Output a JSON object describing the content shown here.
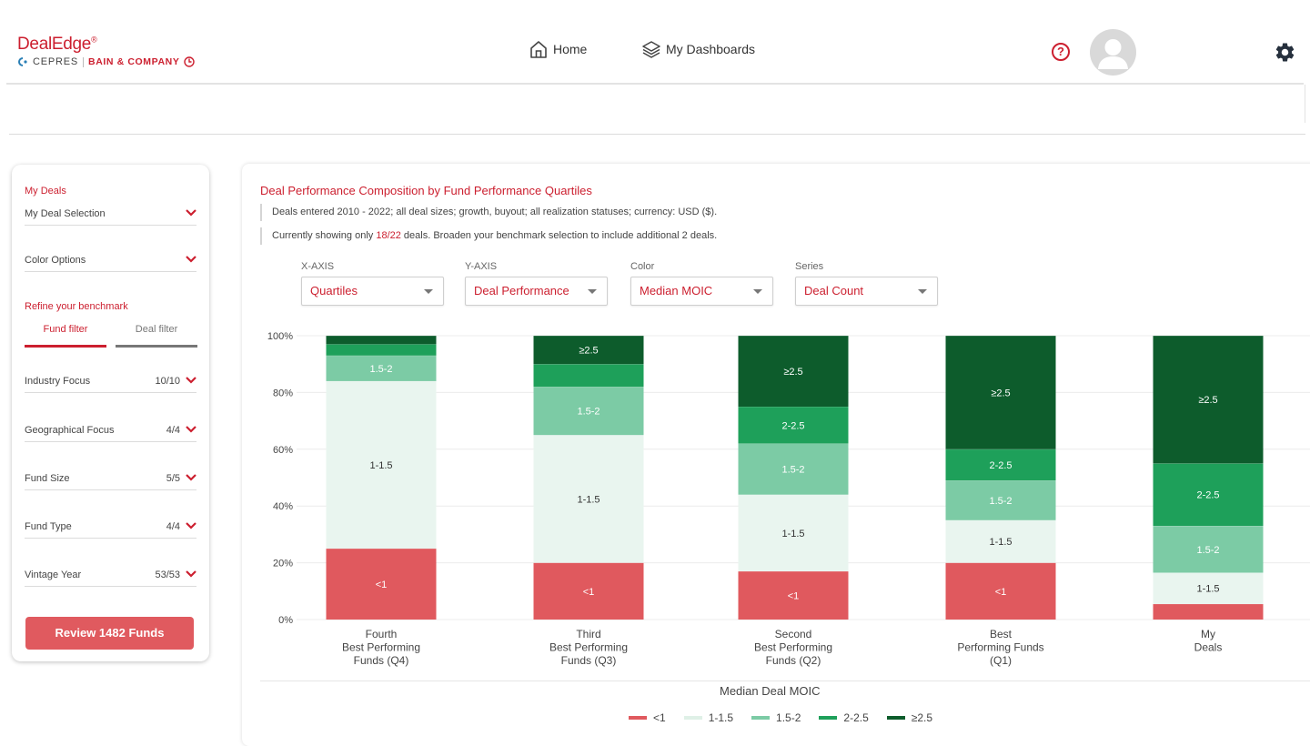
{
  "header": {
    "logo": {
      "brand": "DealEdge",
      "mark": "®",
      "partner1": "CEPRES",
      "partner2": "BAIN & COMPANY"
    },
    "nav": [
      {
        "label": "Home",
        "icon": "home-icon"
      },
      {
        "label": "My Dashboards",
        "icon": "layers-icon"
      }
    ],
    "help_glyph": "?",
    "icons": {
      "help": "help-icon",
      "avatar": "user-avatar-icon",
      "settings": "gear-icon"
    }
  },
  "sidebar": {
    "my_deals_title": "My Deals",
    "deal_selection": "My Deal Selection",
    "color_options": "Color Options",
    "refine_title": "Refine your benchmark",
    "tabs": [
      "Fund filter",
      "Deal filter"
    ],
    "filters": [
      {
        "label": "Industry Focus",
        "value": "10/10"
      },
      {
        "label": "Geographical Focus",
        "value": "4/4"
      },
      {
        "label": "Fund Size",
        "value": "5/5"
      },
      {
        "label": "Fund Type",
        "value": "4/4"
      },
      {
        "label": "Vintage Year",
        "value": "53/53"
      }
    ],
    "review_button": "Review 1482 Funds"
  },
  "panel": {
    "title": "Deal Performance Composition by Fund Performance Quartiles",
    "note1": "Deals entered 2010 - 2022; all deal sizes; growth, buyout; all realization statuses; currency: USD ($).",
    "note2_prefix": "Currently showing only ",
    "note2_count": "18/22",
    "note2_suffix": " deals. Broaden your benchmark selection to include additional 2 deals.",
    "dropdowns": [
      {
        "label": "X-AXIS",
        "value": "Quartiles"
      },
      {
        "label": "Y-AXIS",
        "value": "Deal Performance"
      },
      {
        "label": "Color",
        "value": "Median MOIC"
      },
      {
        "label": "Series",
        "value": "Deal Count"
      }
    ]
  },
  "chart_data": {
    "type": "bar",
    "stacked": true,
    "title": "",
    "xlabel": "",
    "ylabel": "",
    "ylim": [
      0,
      100
    ],
    "yticks": [
      "0%",
      "20%",
      "40%",
      "60%",
      "80%",
      "100%"
    ],
    "categories": [
      [
        "Fourth",
        "Best Performing",
        "Funds (Q4)"
      ],
      [
        "Third",
        "Best Performing",
        "Funds (Q3)"
      ],
      [
        "Second",
        "Best Performing",
        "Funds (Q2)"
      ],
      [
        "Best",
        "Performing Funds",
        "(Q1)"
      ],
      [
        "My",
        "Deals"
      ]
    ],
    "legend_title": "Median Deal MOIC",
    "legend_position": "bottom",
    "series": [
      {
        "name": "<1",
        "color": "#e0595e",
        "label_color": "#ffffff",
        "values": [
          25,
          20,
          17,
          20,
          5.5
        ]
      },
      {
        "name": "1-1.5",
        "color": "#e9f5ef",
        "label_color": "#333333",
        "values": [
          59,
          45,
          27,
          15,
          11
        ]
      },
      {
        "name": "1.5-2",
        "color": "#7ccba5",
        "label_color": "#ffffff",
        "values": [
          9,
          17,
          18,
          14,
          16.5
        ]
      },
      {
        "name": "2-2.5",
        "color": "#1ea05a",
        "label_color": "#ffffff",
        "values": [
          4,
          8,
          13,
          11,
          22
        ]
      },
      {
        "name": "≥2.5",
        "color": "#0d5c2c",
        "label_color": "#ffffff",
        "values": [
          3,
          10,
          25,
          40,
          45
        ]
      }
    ],
    "segment_labels": [
      [
        "<1",
        "1-1.5",
        "1.5-2",
        "",
        ""
      ],
      [
        "<1",
        "1-1.5",
        "1.5-2",
        "",
        "≥2.5"
      ],
      [
        "<1",
        "1-1.5",
        "1.5-2",
        "2-2.5",
        "≥2.5"
      ],
      [
        "<1",
        "1-1.5",
        "1.5-2",
        "2-2.5",
        "≥2.5"
      ],
      [
        "",
        "1-1.5",
        "1.5-2",
        "2-2.5",
        "≥2.5"
      ]
    ],
    "grid": true
  }
}
